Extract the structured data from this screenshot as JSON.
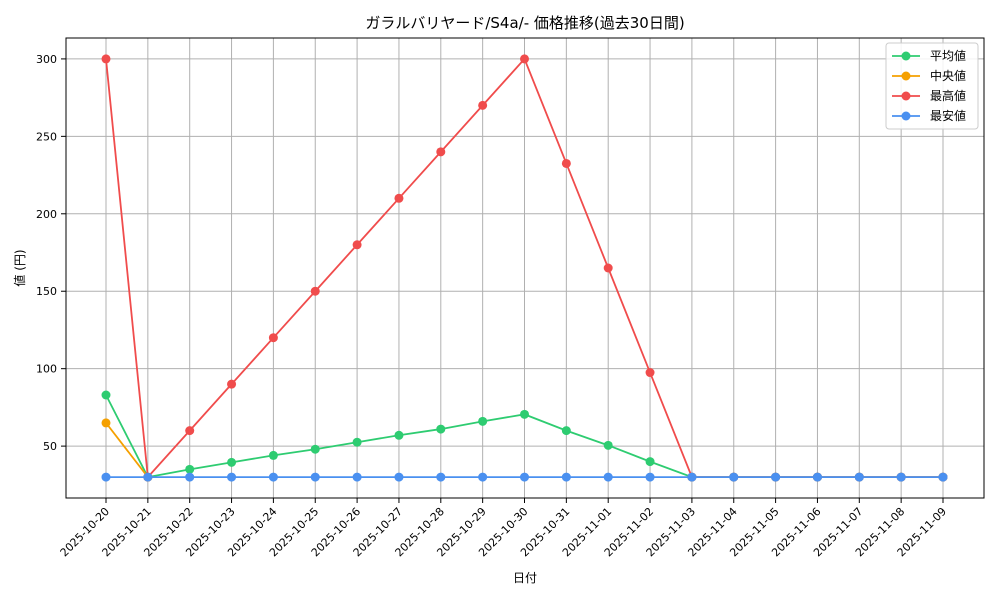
{
  "chart_data": {
    "type": "line",
    "title": "ガラルバリヤード/S4a/- 価格推移(過去30日間)",
    "xlabel": "日付",
    "ylabel": "値 (円)",
    "categories": [
      "2025-10-20",
      "2025-10-21",
      "2025-10-22",
      "2025-10-23",
      "2025-10-24",
      "2025-10-25",
      "2025-10-26",
      "2025-10-27",
      "2025-10-28",
      "2025-10-29",
      "2025-10-30",
      "2025-10-31",
      "2025-11-01",
      "2025-11-02",
      "2025-11-03",
      "2025-11-04",
      "2025-11-05",
      "2025-11-06",
      "2025-11-07",
      "2025-11-08",
      "2025-11-09"
    ],
    "ylim": [
      16.5,
      313.5
    ],
    "yticks": [
      50,
      100,
      150,
      200,
      250,
      300
    ],
    "grid": true,
    "legend_position": "top-right",
    "series": [
      {
        "name": "平均値",
        "color": "#2ecc71",
        "values": [
          83,
          30,
          35,
          39.5,
          44,
          48,
          52.5,
          57,
          61,
          66,
          70.5,
          60,
          50.5,
          40,
          30,
          30,
          30,
          30,
          30,
          30,
          30
        ]
      },
      {
        "name": "中央値",
        "color": "#f5a000",
        "values": [
          65,
          30,
          null,
          null,
          null,
          null,
          null,
          null,
          null,
          null,
          null,
          null,
          null,
          null,
          null,
          null,
          null,
          null,
          null,
          null,
          null
        ]
      },
      {
        "name": "最高値",
        "color": "#f04c4c",
        "values": [
          300,
          30,
          60,
          90,
          120,
          150,
          180,
          210,
          240,
          270,
          300,
          232.5,
          165,
          97.5,
          30,
          30,
          30,
          30,
          30,
          30,
          30
        ]
      },
      {
        "name": "最安値",
        "color": "#4a90f0",
        "values": [
          30,
          30,
          30,
          30,
          30,
          30,
          30,
          30,
          30,
          30,
          30,
          30,
          30,
          30,
          30,
          30,
          30,
          30,
          30,
          30,
          30
        ]
      }
    ]
  }
}
